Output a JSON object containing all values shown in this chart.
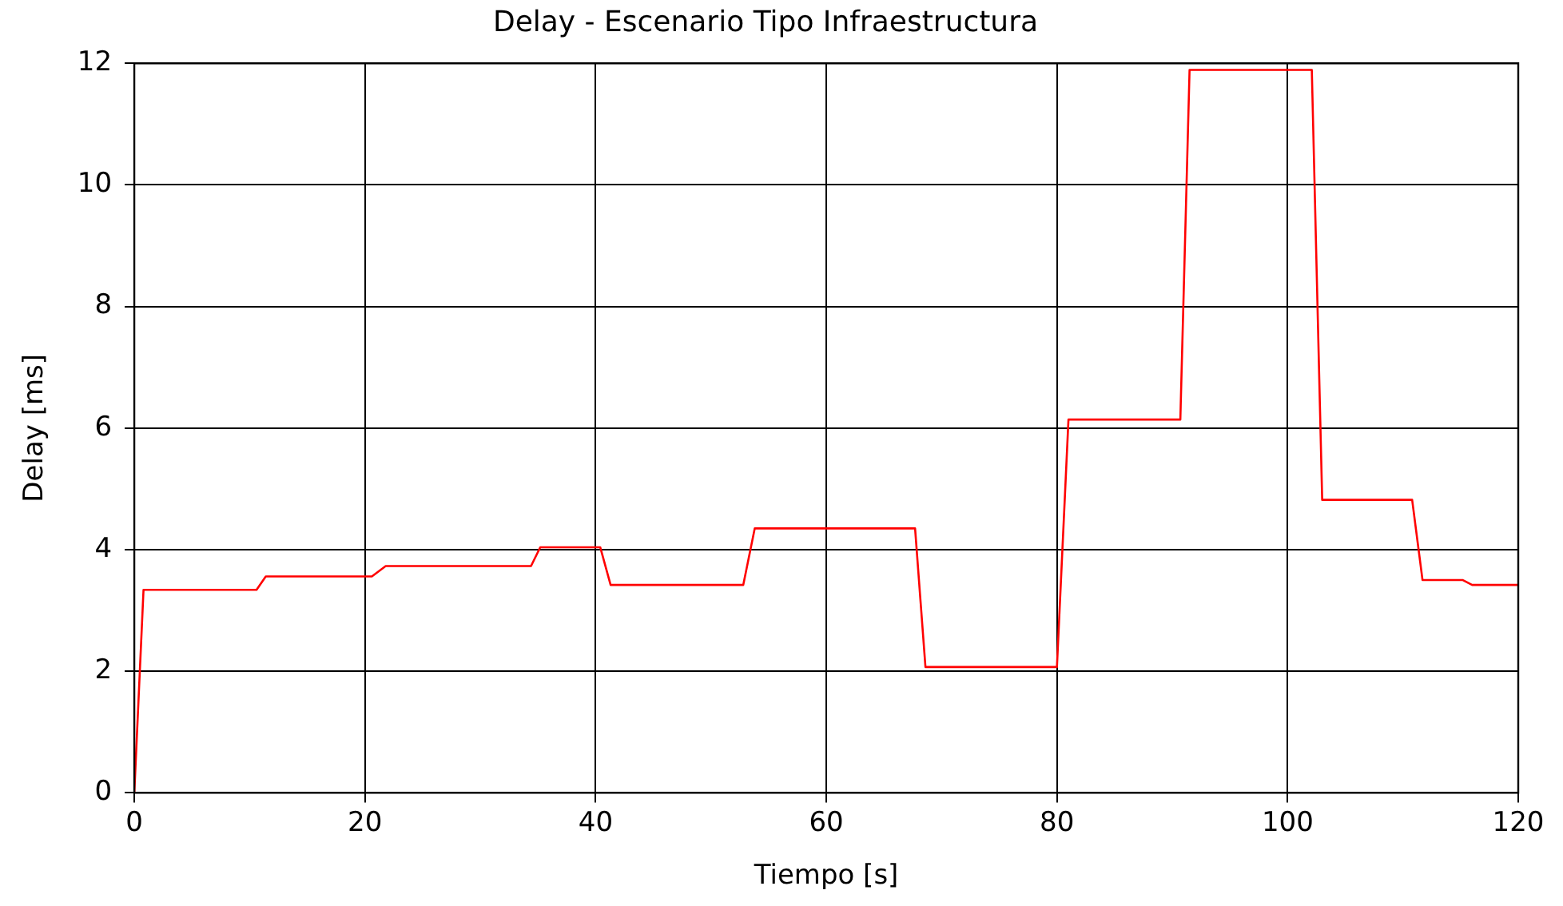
{
  "chart_data": {
    "type": "line",
    "title": "Delay - Escenario Tipo Infraestructura",
    "xlabel": "Tiempo [s]",
    "ylabel": "Delay [ms]",
    "x": [
      0,
      0.8,
      10.6,
      11.4,
      20.6,
      21.8,
      34.4,
      35.2,
      40.4,
      41.3,
      52.8,
      53.8,
      67.7,
      68.6,
      80,
      81,
      90.7,
      91.5,
      102.1,
      103,
      110.8,
      111.7,
      115.2,
      116,
      120
    ],
    "series": [
      {
        "color": "#ff0000",
        "values": [
          0,
          3.34,
          3.34,
          3.56,
          3.56,
          3.73,
          3.73,
          4.04,
          4.04,
          3.42,
          3.42,
          4.35,
          4.35,
          2.07,
          2.07,
          6.14,
          6.14,
          11.89,
          11.89,
          4.82,
          4.82,
          3.5,
          3.5,
          3.42,
          3.42
        ]
      }
    ],
    "xlim": [
      0,
      120
    ],
    "xticks": [
      0,
      20,
      40,
      60,
      80,
      100,
      120
    ],
    "ylim": [
      0,
      12
    ],
    "yticks": [
      0,
      2,
      4,
      6,
      8,
      10,
      12
    ],
    "grid": true,
    "legend": false,
    "marker": "none",
    "line_style": "solid"
  }
}
